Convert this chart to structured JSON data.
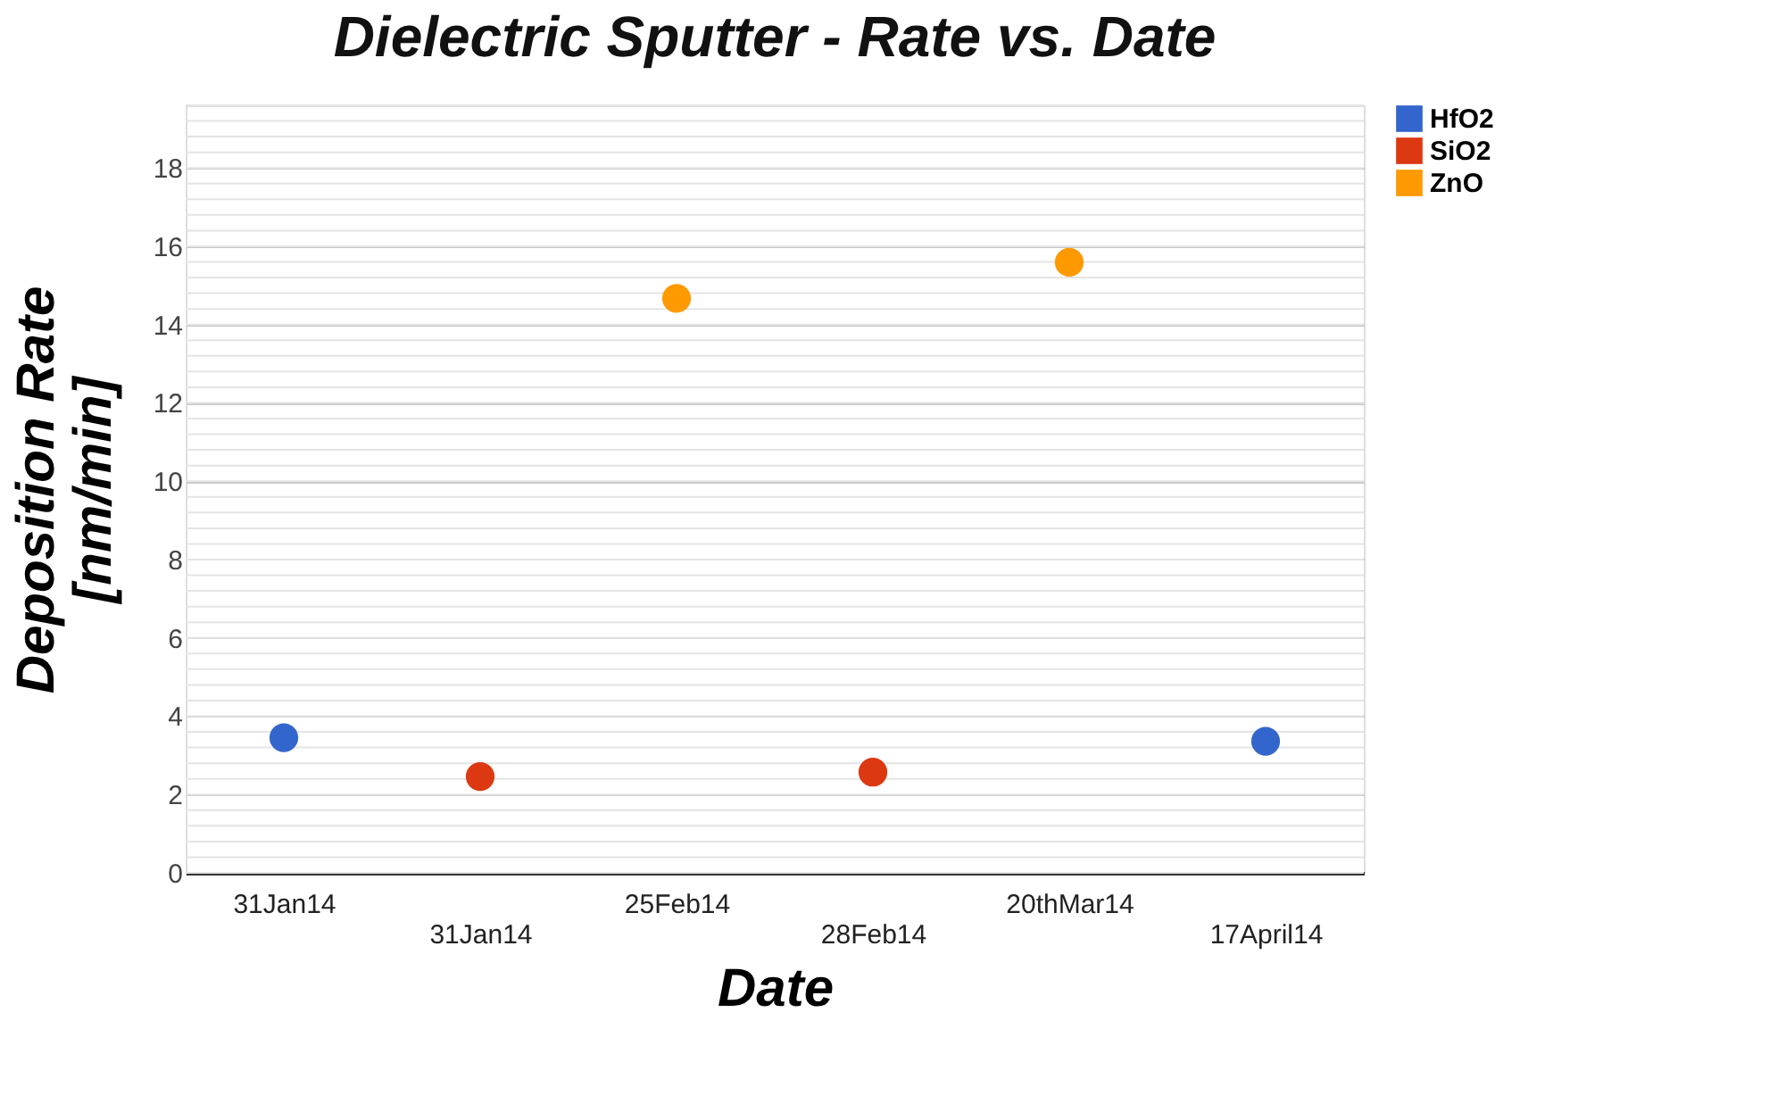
{
  "chart_data": {
    "type": "scatter",
    "title": "Dielectric Sputter - Rate vs. Date",
    "xlabel": "Date",
    "ylabel": "Deposition Rate [nm/min]",
    "categories": [
      "31Jan14",
      "31Jan14",
      "25Feb14",
      "28Feb14",
      "20thMar14",
      "17April14"
    ],
    "series": [
      {
        "name": "HfO2",
        "color": "#3366cc",
        "values": [
          3.45,
          null,
          null,
          null,
          null,
          3.36
        ]
      },
      {
        "name": "SiO2",
        "color": "#dc3912",
        "values": [
          null,
          2.46,
          null,
          2.57,
          null,
          null
        ]
      },
      {
        "name": "ZnO",
        "color": "#ff9900",
        "values": [
          null,
          null,
          14.67,
          null,
          15.59,
          null
        ]
      }
    ],
    "ylim": [
      0,
      19.6
    ],
    "yticks": [
      0,
      2,
      4,
      6,
      8,
      10,
      12,
      14,
      16,
      18
    ],
    "grid": "y",
    "legend": "top right",
    "marker": "circle"
  }
}
